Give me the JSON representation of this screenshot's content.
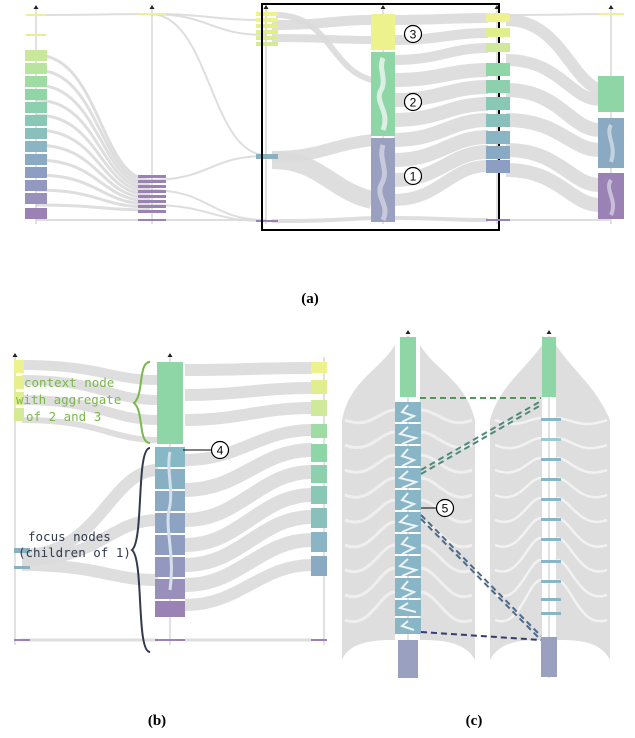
{
  "figure": {
    "panels": [
      {
        "id": "a",
        "caption": "(a)"
      },
      {
        "id": "b",
        "caption": "(b)"
      },
      {
        "id": "c",
        "caption": "(c)"
      }
    ],
    "callouts": [
      "1",
      "2",
      "3",
      "4",
      "5"
    ],
    "annotations": {
      "context_node": [
        "context node",
        "with aggregate",
        "of 2 and 3"
      ],
      "focus_nodes": [
        "focus nodes",
        "(children of 1)"
      ]
    },
    "colors": {
      "flow": "#dddddd",
      "axis": "#b5b5b5",
      "yellow": "#eef28c",
      "light_green": "#cfe89a",
      "green": "#8fd6a6",
      "teal": "#8ac4c0",
      "blue": "#8aa9c0",
      "slate": "#9aa0c0",
      "purple": "#9a82b4",
      "brace_green": "#7ab84a",
      "brace_dark": "#333a4e"
    }
  }
}
